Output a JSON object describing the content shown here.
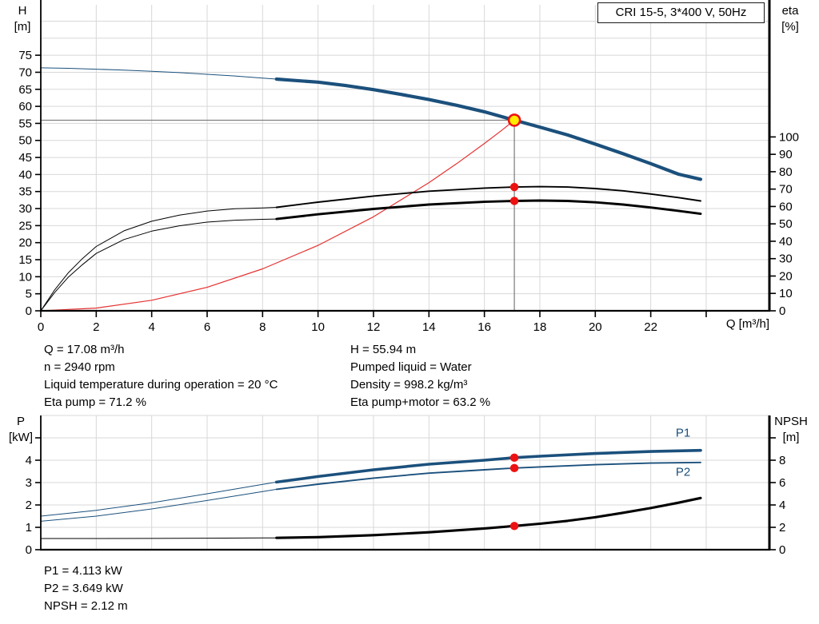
{
  "colors": {
    "curve_blue": "#1b507c",
    "system_red": "#e53131",
    "dot_red": "#ee1111",
    "duty_fill": "#ffeb00",
    "duty_ring": "#ee1111",
    "black": "#000000",
    "grid": "#d8d8d8",
    "crosshair": "#7a7a7a"
  },
  "info": {
    "top_left": [
      "Q = 17.08 m³/h",
      "n = 2940 rpm",
      "Liquid temperature during operation = 20 °C",
      "Eta pump = 71.2 %"
    ],
    "top_right": [
      "H = 55.94 m",
      "Pumped liquid = Water",
      "Density = 998.2 kg/m³",
      "Eta pump+motor = 63.2 %"
    ],
    "bottom": [
      "P1 = 4.113 kW",
      "P2 = 3.649 kW",
      "NPSH = 2.12 m"
    ]
  },
  "chart_data": [
    {
      "name": "head-efficiency-chart",
      "type": "line",
      "title": "CRI 15-5, 3*400 V, 50Hz",
      "x_axis": {
        "label": "Q [m³/h]",
        "min": 0,
        "max": 26.28,
        "ticks": [
          0,
          2,
          4,
          6,
          8,
          10,
          12,
          14,
          16,
          18,
          20,
          22,
          24
        ],
        "tick_labels": [
          "0",
          "2",
          "4",
          "6",
          "8",
          "10",
          "12",
          "14",
          "16",
          "18",
          "20",
          "22",
          ""
        ],
        "grid": [
          2,
          4,
          6,
          8,
          10,
          12,
          14,
          16,
          18,
          20,
          22,
          24
        ]
      },
      "y_left": {
        "label_lines": [
          "H",
          "[m]"
        ],
        "min": 0,
        "max": 89.8,
        "ticks": [
          0,
          5,
          10,
          15,
          20,
          25,
          30,
          35,
          40,
          45,
          50,
          55,
          60,
          65,
          70,
          75
        ],
        "grid": [
          5,
          10,
          15,
          20,
          25,
          30,
          35,
          40,
          45,
          50,
          55,
          60,
          65,
          70,
          75,
          80,
          85
        ]
      },
      "y_right": {
        "label_lines": [
          "eta",
          "[%]"
        ],
        "min": 0,
        "max": 176,
        "ticks": [
          0,
          10,
          20,
          30,
          40,
          50,
          60,
          70,
          80,
          90,
          100
        ]
      },
      "series": [
        {
          "name": "head-curve-extension",
          "axis": "left",
          "color": "curve_blue",
          "width": 1,
          "points": [
            [
              0,
              71.3
            ],
            [
              1,
              71.15
            ],
            [
              2,
              70.9
            ],
            [
              3,
              70.65
            ],
            [
              4,
              70.3
            ],
            [
              5,
              69.9
            ],
            [
              6,
              69.4
            ],
            [
              7,
              68.9
            ],
            [
              8,
              68.3
            ],
            [
              8.5,
              68.0
            ]
          ]
        },
        {
          "name": "system-curve",
          "axis": "left",
          "color": "system_red",
          "width": 1.2,
          "points": [
            [
              0,
              0
            ],
            [
              2,
              0.8
            ],
            [
              4,
              3.1
            ],
            [
              6,
              6.9
            ],
            [
              8,
              12.3
            ],
            [
              10,
              19.2
            ],
            [
              12,
              27.6
            ],
            [
              14,
              37.6
            ],
            [
              15,
              43.2
            ],
            [
              16,
              49.1
            ],
            [
              16.6,
              52.8
            ],
            [
              17.08,
              55.94
            ]
          ]
        },
        {
          "name": "eta-pump-curve-extension",
          "axis": "right",
          "color": "black",
          "width": 1,
          "points": [
            [
              0,
              0
            ],
            [
              0.5,
              12
            ],
            [
              1,
              22
            ],
            [
              1.5,
              30
            ],
            [
              2,
              37
            ],
            [
              3,
              46
            ],
            [
              4,
              51.5
            ],
            [
              5,
              55
            ],
            [
              6,
              57.4
            ],
            [
              7,
              58.7
            ],
            [
              8,
              59.2
            ],
            [
              8.5,
              59.5
            ]
          ]
        },
        {
          "name": "eta-pump-motor-curve-extension",
          "axis": "right",
          "color": "black",
          "width": 1,
          "points": [
            [
              0,
              0
            ],
            [
              0.5,
              10.5
            ],
            [
              1,
              19.5
            ],
            [
              1.5,
              26.5
            ],
            [
              2,
              33
            ],
            [
              3,
              41
            ],
            [
              4,
              45.8
            ],
            [
              5,
              48.9
            ],
            [
              6,
              51
            ],
            [
              7,
              52.1
            ],
            [
              8,
              52.6
            ],
            [
              8.5,
              52.8
            ]
          ]
        },
        {
          "name": "eta-pump-curve",
          "axis": "right",
          "color": "black",
          "width": 1.9,
          "points": [
            [
              8.5,
              59.5
            ],
            [
              10,
              62.5
            ],
            [
              12,
              66
            ],
            [
              14,
              68.8
            ],
            [
              16,
              70.6
            ],
            [
              17.08,
              71.2
            ],
            [
              18,
              71.4
            ],
            [
              19,
              71.2
            ],
            [
              20,
              70.3
            ],
            [
              21,
              69
            ],
            [
              22,
              67.2
            ],
            [
              23,
              65.1
            ],
            [
              23.8,
              63.2
            ]
          ]
        },
        {
          "name": "eta-pump-motor-curve",
          "axis": "right",
          "color": "black",
          "width": 2.9,
          "points": [
            [
              8.5,
              52.8
            ],
            [
              10,
              55.5
            ],
            [
              12,
              58.6
            ],
            [
              14,
              61.1
            ],
            [
              16,
              62.7
            ],
            [
              17.08,
              63.2
            ],
            [
              18,
              63.4
            ],
            [
              19,
              63.2
            ],
            [
              20,
              62.4
            ],
            [
              21,
              61.1
            ],
            [
              22,
              59.4
            ],
            [
              23,
              57.5
            ],
            [
              23.8,
              55.8
            ]
          ]
        },
        {
          "name": "head-curve",
          "axis": "left",
          "color": "curve_blue",
          "width": 4.2,
          "points": [
            [
              8.5,
              68.0
            ],
            [
              9,
              67.7
            ],
            [
              10,
              67.1
            ],
            [
              11,
              66.1
            ],
            [
              12,
              64.9
            ],
            [
              13,
              63.5
            ],
            [
              14,
              62.0
            ],
            [
              15,
              60.3
            ],
            [
              16,
              58.4
            ],
            [
              17.08,
              55.94
            ],
            [
              18,
              53.9
            ],
            [
              19,
              51.6
            ],
            [
              20,
              48.9
            ],
            [
              21,
              46.1
            ],
            [
              22,
              43.2
            ],
            [
              23,
              40.1
            ],
            [
              23.8,
              38.6
            ]
          ]
        }
      ],
      "crosshair": {
        "q": 17.08,
        "v": 55.94
      },
      "markers": [
        {
          "name": "eta-pump-dot",
          "style": "dot",
          "axis": "right",
          "q": 17.08,
          "v": 71.2
        },
        {
          "name": "eta-pump-motor-dot",
          "style": "dot",
          "axis": "right",
          "q": 17.08,
          "v": 63.2
        },
        {
          "name": "duty-point",
          "style": "duty",
          "axis": "left",
          "q": 17.08,
          "v": 55.94
        }
      ]
    },
    {
      "name": "power-npsh-chart",
      "type": "line",
      "x_axis": {
        "label": "",
        "min": 0,
        "max": 26.28,
        "ticks": [],
        "tick_labels": [],
        "grid": [
          2,
          4,
          6,
          8,
          10,
          12,
          14,
          16,
          18,
          20,
          22,
          24
        ]
      },
      "y_left": {
        "label_lines": [
          "P",
          "[kW]"
        ],
        "min": 0,
        "max": 6,
        "ticks": [
          0,
          1,
          2,
          3,
          4,
          5
        ],
        "tick_labels": [
          "0",
          "1",
          "2",
          "3",
          "4",
          ""
        ],
        "grid": [
          1,
          2,
          3,
          4,
          5,
          6
        ]
      },
      "y_right": {
        "label_lines": [
          "NPSH",
          "[m]"
        ],
        "min": 0,
        "max": 12,
        "ticks": [
          0,
          2,
          4,
          6,
          8,
          10
        ],
        "tick_labels": [
          "0",
          "2",
          "4",
          "6",
          "8",
          ""
        ]
      },
      "series": [
        {
          "name": "p1-curve-extension",
          "axis": "left",
          "color": "curve_blue",
          "width": 1,
          "points": [
            [
              0,
              1.5
            ],
            [
              2,
              1.76
            ],
            [
              4,
              2.1
            ],
            [
              6,
              2.5
            ],
            [
              8,
              2.92
            ],
            [
              8.5,
              3.02
            ]
          ]
        },
        {
          "name": "p2-curve-extension",
          "axis": "left",
          "color": "curve_blue",
          "width": 1,
          "points": [
            [
              0,
              1.27
            ],
            [
              2,
              1.5
            ],
            [
              4,
              1.82
            ],
            [
              6,
              2.2
            ],
            [
              8,
              2.6
            ],
            [
              8.5,
              2.7
            ]
          ]
        },
        {
          "name": "npsh-curve-extension",
          "axis": "right",
          "color": "black",
          "width": 1,
          "points": [
            [
              0,
              1.0
            ],
            [
              2,
              1.0
            ],
            [
              4,
              1.01
            ],
            [
              6,
              1.03
            ],
            [
              8,
              1.05
            ],
            [
              8.5,
              1.06
            ]
          ]
        },
        {
          "name": "p2-curve",
          "axis": "left",
          "color": "curve_blue",
          "width": 1.9,
          "points": [
            [
              8.5,
              2.7
            ],
            [
              10,
              2.93
            ],
            [
              12,
              3.2
            ],
            [
              14,
              3.42
            ],
            [
              16,
              3.57
            ],
            [
              17.08,
              3.649
            ],
            [
              18,
              3.7
            ],
            [
              20,
              3.8
            ],
            [
              22,
              3.87
            ],
            [
              23.8,
              3.9
            ]
          ]
        },
        {
          "name": "p1-curve",
          "axis": "left",
          "color": "curve_blue",
          "width": 3.6,
          "points": [
            [
              8.5,
              3.02
            ],
            [
              10,
              3.27
            ],
            [
              12,
              3.57
            ],
            [
              14,
              3.82
            ],
            [
              16,
              4.0
            ],
            [
              17.08,
              4.113
            ],
            [
              18,
              4.18
            ],
            [
              20,
              4.3
            ],
            [
              22,
              4.39
            ],
            [
              23.8,
              4.44
            ]
          ]
        },
        {
          "name": "npsh-curve",
          "axis": "right",
          "color": "black",
          "width": 3.1,
          "points": [
            [
              8.5,
              1.06
            ],
            [
              10,
              1.12
            ],
            [
              12,
              1.3
            ],
            [
              14,
              1.56
            ],
            [
              16,
              1.9
            ],
            [
              17.08,
              2.12
            ],
            [
              18,
              2.32
            ],
            [
              19,
              2.58
            ],
            [
              20,
              2.9
            ],
            [
              21,
              3.3
            ],
            [
              22,
              3.72
            ],
            [
              23,
              4.2
            ],
            [
              23.8,
              4.62
            ]
          ]
        }
      ],
      "curve_labels": [
        {
          "name": "p1-curve-label",
          "text": "P1",
          "axis": "left",
          "q": 22.9,
          "v": 5.05
        },
        {
          "name": "p2-curve-label",
          "text": "P2",
          "axis": "left",
          "q": 22.9,
          "v": 3.3
        }
      ],
      "markers": [
        {
          "name": "p1-dot",
          "style": "dot",
          "axis": "left",
          "q": 17.08,
          "v": 4.113
        },
        {
          "name": "p2-dot",
          "style": "dot",
          "axis": "left",
          "q": 17.08,
          "v": 3.649
        },
        {
          "name": "npsh-dot",
          "style": "dot",
          "axis": "right",
          "q": 17.08,
          "v": 2.12
        }
      ]
    }
  ]
}
